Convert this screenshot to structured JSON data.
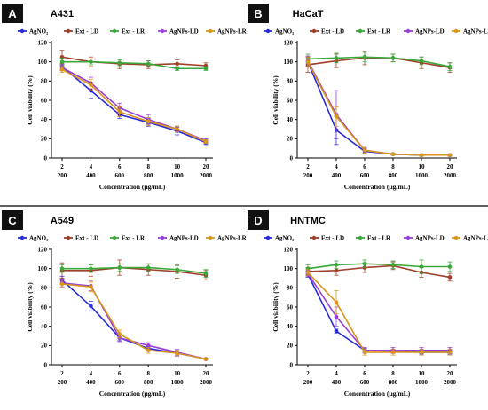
{
  "chart_data": [
    {
      "type": "line",
      "panel_label": "A",
      "title": "A431",
      "xlabel": "Concentration (µg/mL)",
      "ylabel": "Cell viability (%)",
      "x": [
        1,
        2,
        3,
        4,
        5,
        6
      ],
      "x_tick_labels_top": [
        "2",
        "4",
        "6",
        "8",
        "10",
        "20"
      ],
      "x_tick_labels_bottom": [
        "200",
        "400",
        "600",
        "800",
        "1000",
        "2000"
      ],
      "y_ticks": [
        "0",
        "20",
        "40",
        "60",
        "80",
        "100",
        "120"
      ],
      "ylim": [
        0,
        120
      ],
      "legend_position": "top",
      "series": [
        {
          "name": "AgNO₃",
          "color": "#2b2bd6",
          "values": [
            95,
            70,
            45,
            37,
            28,
            16
          ],
          "errors": [
            3,
            8,
            4,
            4,
            4,
            2
          ]
        },
        {
          "name": "Ext - LD",
          "color": "#a0402a",
          "values": [
            105,
            100,
            98,
            97,
            98,
            96
          ],
          "errors": [
            7,
            5,
            5,
            4,
            4,
            3
          ]
        },
        {
          "name": "Ext - LR",
          "color": "#3aa83a",
          "values": [
            100,
            100,
            99,
            98,
            93,
            93
          ],
          "errors": [
            4,
            3,
            3,
            3,
            2,
            2
          ]
        },
        {
          "name": "AgNPs-LD",
          "color": "#9b3fd6",
          "values": [
            94,
            78,
            52,
            40,
            30,
            18
          ],
          "errors": [
            3,
            6,
            5,
            5,
            3,
            2
          ]
        },
        {
          "name": "AgNPs-LR",
          "color": "#d8961a",
          "values": [
            92,
            76,
            48,
            38,
            30,
            17
          ],
          "errors": [
            3,
            6,
            5,
            4,
            3,
            2
          ]
        }
      ]
    },
    {
      "type": "line",
      "panel_label": "B",
      "title": "HaCaT",
      "xlabel": "Concentration (µg/mL)",
      "ylabel": "Cell viability (%)",
      "x": [
        1,
        2,
        3,
        4,
        5,
        6
      ],
      "x_tick_labels_top": [
        "2",
        "4",
        "6",
        "8",
        "10",
        "20"
      ],
      "x_tick_labels_bottom": [
        "200",
        "400",
        "600",
        "800",
        "1000",
        "2000"
      ],
      "y_ticks": [
        "0",
        "20",
        "40",
        "60",
        "80",
        "100",
        "120"
      ],
      "ylim": [
        0,
        120
      ],
      "legend_position": "top",
      "series": [
        {
          "name": "AgNO₃",
          "color": "#2b2bd6",
          "values": [
            100,
            29,
            7,
            4,
            3,
            3
          ],
          "errors": [
            5,
            15,
            3,
            1,
            1,
            1
          ]
        },
        {
          "name": "Ext - LD",
          "color": "#a0402a",
          "values": [
            97,
            101,
            104,
            104,
            99,
            94
          ],
          "errors": [
            8,
            7,
            7,
            4,
            6,
            5
          ]
        },
        {
          "name": "Ext - LR",
          "color": "#3aa83a",
          "values": [
            103,
            104,
            105,
            104,
            101,
            95
          ],
          "errors": [
            5,
            5,
            5,
            4,
            4,
            4
          ]
        },
        {
          "name": "AgNPs-LD",
          "color": "#9b3fd6",
          "values": [
            101,
            45,
            8,
            4,
            3,
            3
          ],
          "errors": [
            5,
            25,
            3,
            1,
            1,
            1
          ]
        },
        {
          "name": "AgNPs-LR",
          "color": "#d8961a",
          "values": [
            100,
            43,
            8,
            4,
            3,
            3
          ],
          "errors": [
            5,
            10,
            3,
            1,
            1,
            1
          ]
        }
      ]
    },
    {
      "type": "line",
      "panel_label": "C",
      "title": "A549",
      "xlabel": "Concentration (µg/mL)",
      "ylabel": "Cell viability (%)",
      "x": [
        1,
        2,
        3,
        4,
        5,
        6
      ],
      "x_tick_labels_top": [
        "2",
        "4",
        "6",
        "8",
        "10",
        "20"
      ],
      "x_tick_labels_bottom": [
        "200",
        "400",
        "600",
        "800",
        "1000",
        "2000"
      ],
      "y_ticks": [
        "0",
        "20",
        "40",
        "60",
        "80",
        "100",
        "120"
      ],
      "ylim": [
        0,
        120
      ],
      "legend_position": "top",
      "series": [
        {
          "name": "AgNO₃",
          "color": "#2b2bd6",
          "values": [
            88,
            61,
            28,
            17,
            12,
            6
          ],
          "errors": [
            4,
            5,
            3,
            2,
            3,
            1
          ]
        },
        {
          "name": "Ext - LD",
          "color": "#a0402a",
          "values": [
            98,
            98,
            101,
            99,
            97,
            93
          ],
          "errors": [
            8,
            6,
            8,
            6,
            7,
            5
          ]
        },
        {
          "name": "Ext - LR",
          "color": "#3aa83a",
          "values": [
            100,
            100,
            101,
            101,
            99,
            95
          ],
          "errors": [
            4,
            4,
            4,
            4,
            4,
            4
          ]
        },
        {
          "name": "AgNPs-LD",
          "color": "#9b3fd6",
          "values": [
            85,
            82,
            28,
            20,
            13,
            6
          ],
          "errors": [
            4,
            5,
            4,
            3,
            3,
            1
          ]
        },
        {
          "name": "AgNPs-LR",
          "color": "#d8961a",
          "values": [
            84,
            81,
            32,
            15,
            12,
            6
          ],
          "errors": [
            4,
            5,
            4,
            3,
            3,
            1
          ]
        }
      ]
    },
    {
      "type": "line",
      "panel_label": "D",
      "title": "HNTMC",
      "xlabel": "Concentration (µg/mL)",
      "ylabel": "Cell viability (%)",
      "x": [
        1,
        2,
        3,
        4,
        5,
        6
      ],
      "x_tick_labels_top": [
        "2",
        "4",
        "6",
        "8",
        "10",
        "20"
      ],
      "x_tick_labels_bottom": [
        "200",
        "400",
        "600",
        "800",
        "1000",
        "2000"
      ],
      "y_ticks": [
        "0",
        "20",
        "40",
        "60",
        "80",
        "100",
        "120"
      ],
      "ylim": [
        0,
        120
      ],
      "legend_position": "top",
      "series": [
        {
          "name": "AgNO₃",
          "color": "#2b2bd6",
          "values": [
            94,
            35,
            15,
            14,
            13,
            13
          ],
          "errors": [
            3,
            2,
            2,
            2,
            2,
            2
          ]
        },
        {
          "name": "Ext - LD",
          "color": "#a0402a",
          "values": [
            97,
            98,
            101,
            103,
            96,
            91
          ],
          "errors": [
            4,
            5,
            5,
            4,
            5,
            4
          ]
        },
        {
          "name": "Ext - LR",
          "color": "#3aa83a",
          "values": [
            100,
            104,
            105,
            104,
            102,
            102
          ],
          "errors": [
            4,
            4,
            4,
            4,
            7,
            5
          ]
        },
        {
          "name": "AgNPs-LD",
          "color": "#9b3fd6",
          "values": [
            95,
            50,
            15,
            15,
            15,
            15
          ],
          "errors": [
            3,
            10,
            3,
            3,
            3,
            3
          ]
        },
        {
          "name": "AgNPs-LR",
          "color": "#d8961a",
          "values": [
            96,
            65,
            13,
            13,
            13,
            13
          ],
          "errors": [
            3,
            12,
            3,
            3,
            3,
            3
          ]
        }
      ]
    }
  ]
}
